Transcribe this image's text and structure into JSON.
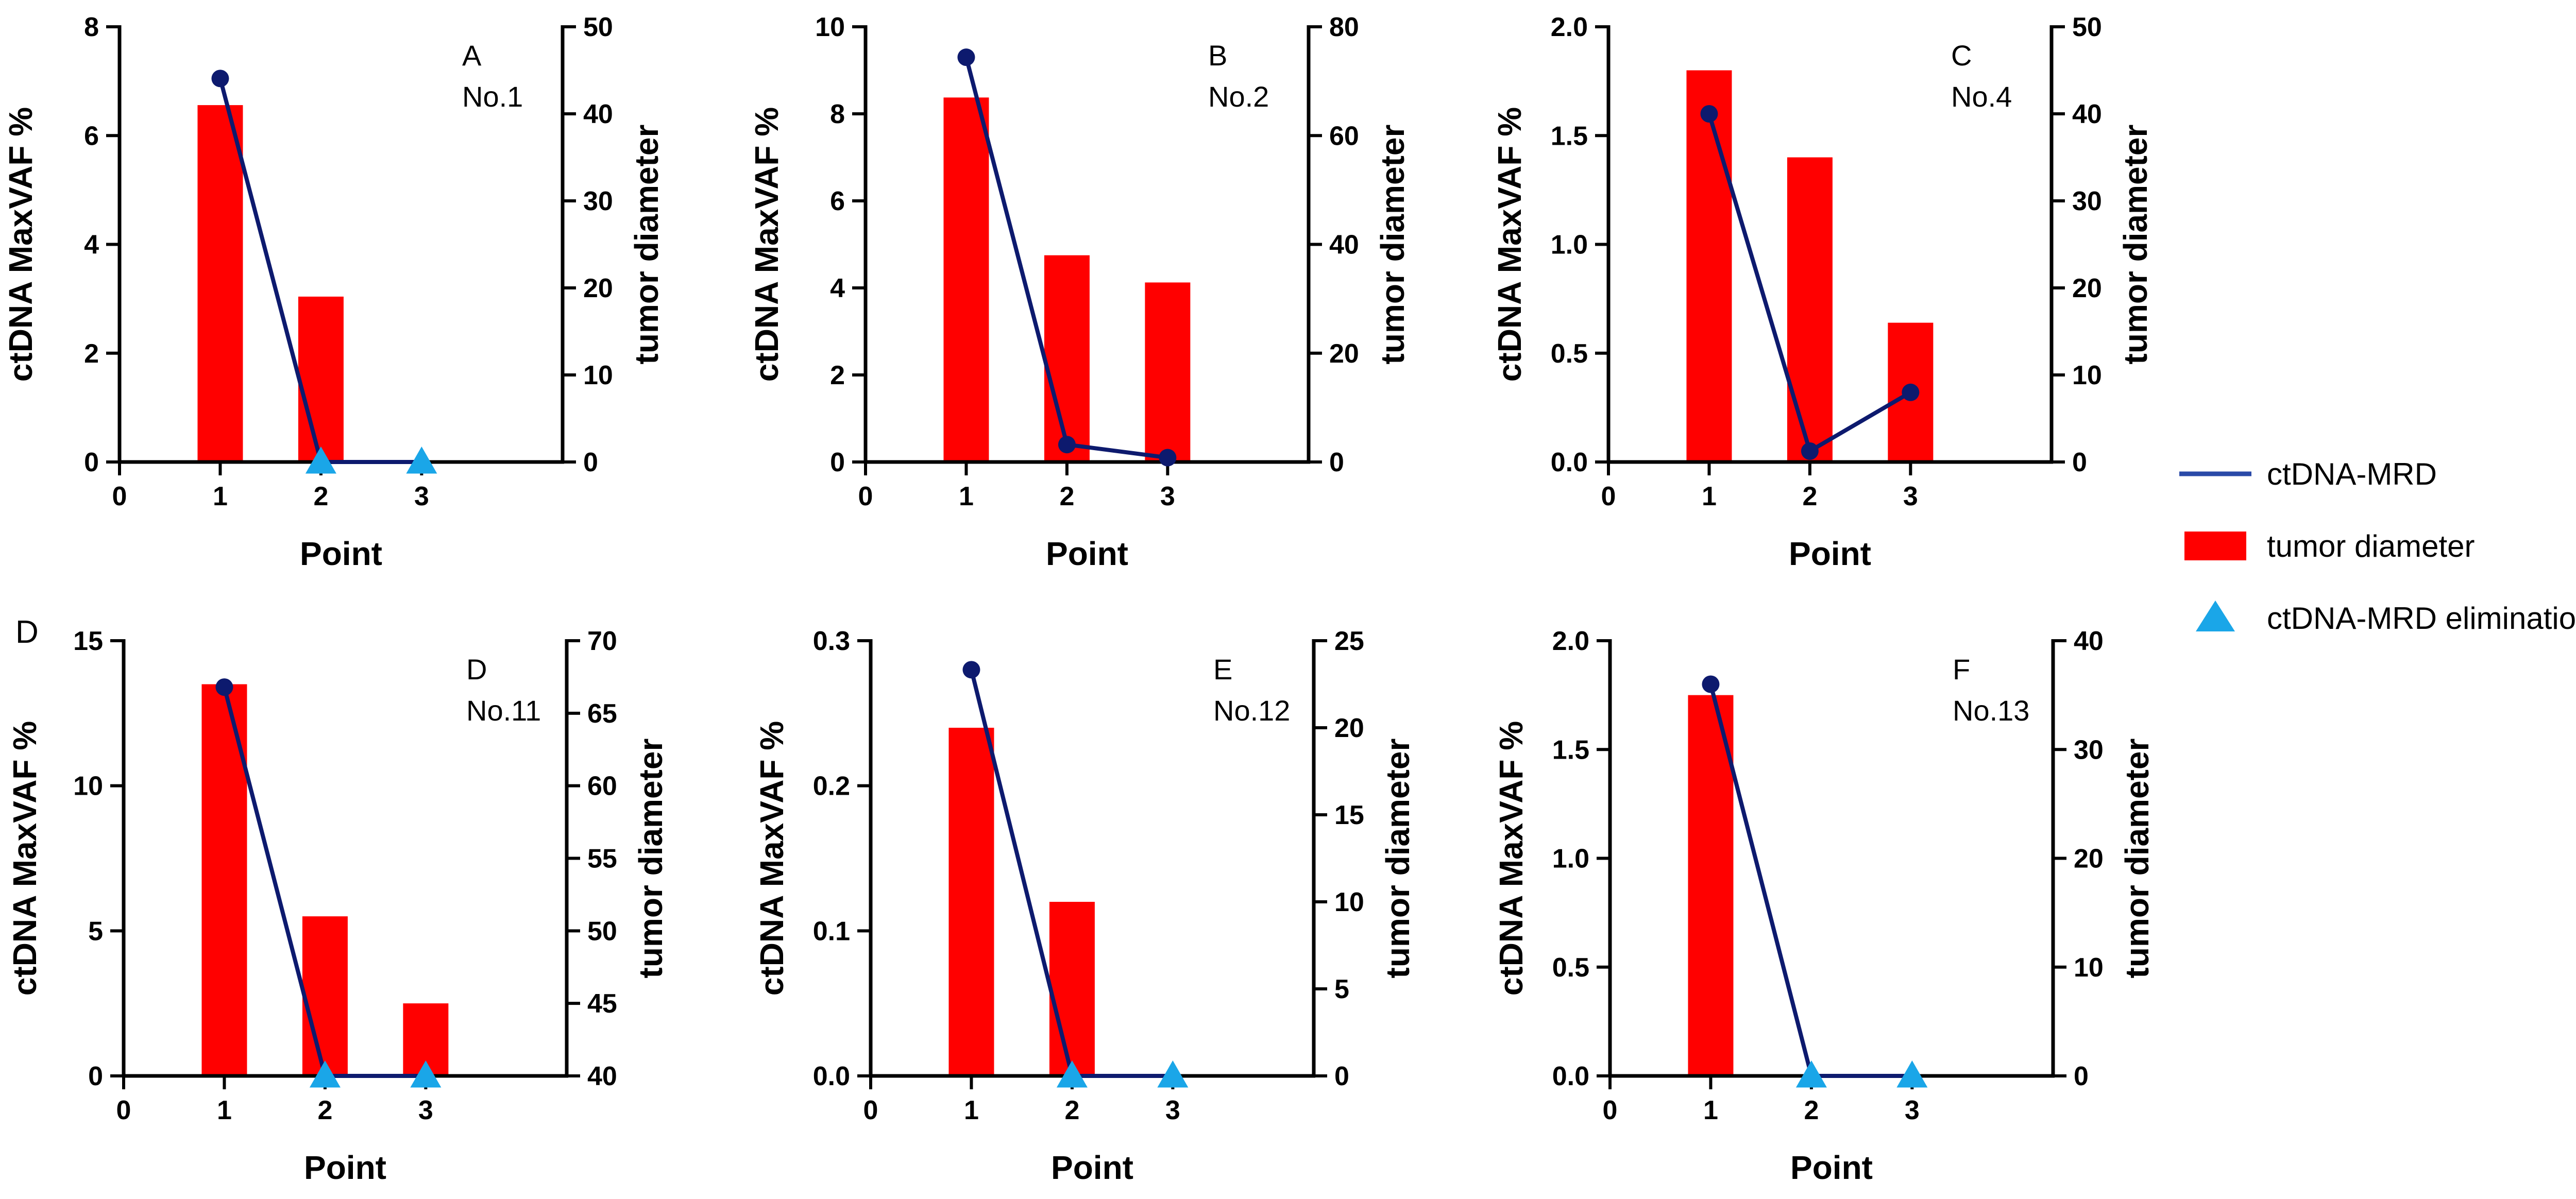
{
  "figure_label": "D",
  "chart_data": [
    {
      "type": "bar+line",
      "panel_letter": "A",
      "case": "No.1",
      "xlabel": "Point",
      "ylabel_left": "ctDNA MaxVAF %",
      "ylabel_right": "tumor diameter",
      "x_ticks": [
        0,
        1,
        2,
        3
      ],
      "y_left_ticks": [
        0,
        2,
        4,
        6,
        8
      ],
      "y_right_ticks": [
        0,
        10,
        20,
        30,
        40,
        50
      ],
      "ylim_left": [
        0,
        8
      ],
      "ylim_right": [
        0,
        50
      ],
      "bars": [
        {
          "x": 1,
          "value": 41
        },
        {
          "x": 2,
          "value": 19
        }
      ],
      "line": [
        {
          "x": 1,
          "value": 7.05
        },
        {
          "x": 2,
          "value": 0
        },
        {
          "x": 3,
          "value": 0
        }
      ],
      "markers": [
        {
          "x": 1,
          "kind": "dot"
        },
        {
          "x": 2,
          "kind": "triangle"
        },
        {
          "x": 3,
          "kind": "triangle"
        }
      ]
    },
    {
      "type": "bar+line",
      "panel_letter": "B",
      "case": "No.2",
      "xlabel": "Point",
      "ylabel_left": "ctDNA MaxVAF %",
      "ylabel_right": "tumor diameter",
      "x_ticks": [
        0,
        1,
        2,
        3
      ],
      "y_left_ticks": [
        0,
        2,
        4,
        6,
        8,
        10
      ],
      "y_right_ticks": [
        0,
        20,
        40,
        60,
        80
      ],
      "ylim_left": [
        0,
        10
      ],
      "ylim_right": [
        0,
        80
      ],
      "bars": [
        {
          "x": 1,
          "value": 67
        },
        {
          "x": 2,
          "value": 38
        },
        {
          "x": 3,
          "value": 33
        }
      ],
      "line": [
        {
          "x": 1,
          "value": 9.3
        },
        {
          "x": 2,
          "value": 0.4
        },
        {
          "x": 3,
          "value": 0.1
        }
      ],
      "markers": [
        {
          "x": 1,
          "kind": "dot"
        },
        {
          "x": 2,
          "kind": "dot"
        },
        {
          "x": 3,
          "kind": "dot"
        }
      ]
    },
    {
      "type": "bar+line",
      "panel_letter": "C",
      "case": "No.4",
      "xlabel": "Point",
      "ylabel_left": "ctDNA MaxVAF %",
      "ylabel_right": "tumor diameter",
      "x_ticks": [
        0,
        1,
        2,
        3
      ],
      "y_left_ticks": [
        "0.0",
        "0.5",
        "1.0",
        "1.5",
        "2.0"
      ],
      "y_right_ticks": [
        0,
        10,
        20,
        30,
        40,
        50
      ],
      "ylim_left": [
        0,
        2
      ],
      "ylim_right": [
        0,
        50
      ],
      "bars": [
        {
          "x": 1,
          "value": 45
        },
        {
          "x": 2,
          "value": 35
        },
        {
          "x": 3,
          "value": 16
        }
      ],
      "line": [
        {
          "x": 1,
          "value": 1.6
        },
        {
          "x": 2,
          "value": 0.05
        },
        {
          "x": 3,
          "value": 0.32
        }
      ],
      "markers": [
        {
          "x": 1,
          "kind": "dot"
        },
        {
          "x": 2,
          "kind": "dot"
        },
        {
          "x": 3,
          "kind": "dot"
        }
      ]
    },
    {
      "type": "bar+line",
      "panel_letter": "D",
      "case": "No.11",
      "xlabel": "Point",
      "ylabel_left": "ctDNA MaxVAF %",
      "ylabel_right": "tumor diameter",
      "x_ticks": [
        0,
        1,
        2,
        3
      ],
      "y_left_ticks": [
        0,
        5,
        10,
        15
      ],
      "y_right_ticks": [
        40,
        45,
        50,
        55,
        60,
        65,
        70
      ],
      "ylim_left": [
        0,
        15
      ],
      "ylim_right": [
        40,
        70
      ],
      "bars": [
        {
          "x": 1,
          "value": 67
        },
        {
          "x": 2,
          "value": 51
        },
        {
          "x": 3,
          "value": 45
        }
      ],
      "line": [
        {
          "x": 1,
          "value": 13.4
        },
        {
          "x": 2,
          "value": 0
        },
        {
          "x": 3,
          "value": 0
        }
      ],
      "markers": [
        {
          "x": 1,
          "kind": "dot"
        },
        {
          "x": 2,
          "kind": "triangle"
        },
        {
          "x": 3,
          "kind": "triangle"
        }
      ]
    },
    {
      "type": "bar+line",
      "panel_letter": "E",
      "case": "No.12",
      "xlabel": "Point",
      "ylabel_left": "ctDNA MaxVAF %",
      "ylabel_right": "tumor diameter",
      "x_ticks": [
        0,
        1,
        2,
        3
      ],
      "y_left_ticks": [
        "0.0",
        "0.1",
        "0.2",
        "0.3"
      ],
      "y_right_ticks": [
        0,
        5,
        10,
        15,
        20,
        25
      ],
      "ylim_left": [
        0,
        0.3
      ],
      "ylim_right": [
        0,
        25
      ],
      "bars": [
        {
          "x": 1,
          "value": 20
        },
        {
          "x": 2,
          "value": 10
        }
      ],
      "line": [
        {
          "x": 1,
          "value": 0.28
        },
        {
          "x": 2,
          "value": 0
        },
        {
          "x": 3,
          "value": 0
        }
      ],
      "markers": [
        {
          "x": 1,
          "kind": "dot"
        },
        {
          "x": 2,
          "kind": "triangle"
        },
        {
          "x": 3,
          "kind": "triangle"
        }
      ]
    },
    {
      "type": "bar+line",
      "panel_letter": "F",
      "case": "No.13",
      "xlabel": "Point",
      "ylabel_left": "ctDNA MaxVAF %",
      "ylabel_right": "tumor diameter",
      "x_ticks": [
        0,
        1,
        2,
        3
      ],
      "y_left_ticks": [
        "0.0",
        "0.5",
        "1.0",
        "1.5",
        "2.0"
      ],
      "y_right_ticks": [
        0,
        10,
        20,
        30,
        40
      ],
      "ylim_left": [
        0,
        2
      ],
      "ylim_right": [
        0,
        40
      ],
      "bars": [
        {
          "x": 1,
          "value": 35
        }
      ],
      "line": [
        {
          "x": 1,
          "value": 1.8
        },
        {
          "x": 2,
          "value": 0
        },
        {
          "x": 3,
          "value": 0
        }
      ],
      "markers": [
        {
          "x": 1,
          "kind": "dot"
        },
        {
          "x": 2,
          "kind": "triangle"
        },
        {
          "x": 3,
          "kind": "triangle"
        }
      ]
    }
  ],
  "legend": {
    "items": [
      {
        "label": "ctDNA-MRD",
        "kind": "line"
      },
      {
        "label": "tumor diameter",
        "kind": "bar"
      },
      {
        "label": "ctDNA-MRD elimination",
        "kind": "triangle"
      }
    ]
  },
  "colors": {
    "bar": "#ff0000",
    "line": "#0d1a6e",
    "legend_line": "#2a4aa8",
    "triangle": "#1aa6e8",
    "axis": "#000000"
  }
}
